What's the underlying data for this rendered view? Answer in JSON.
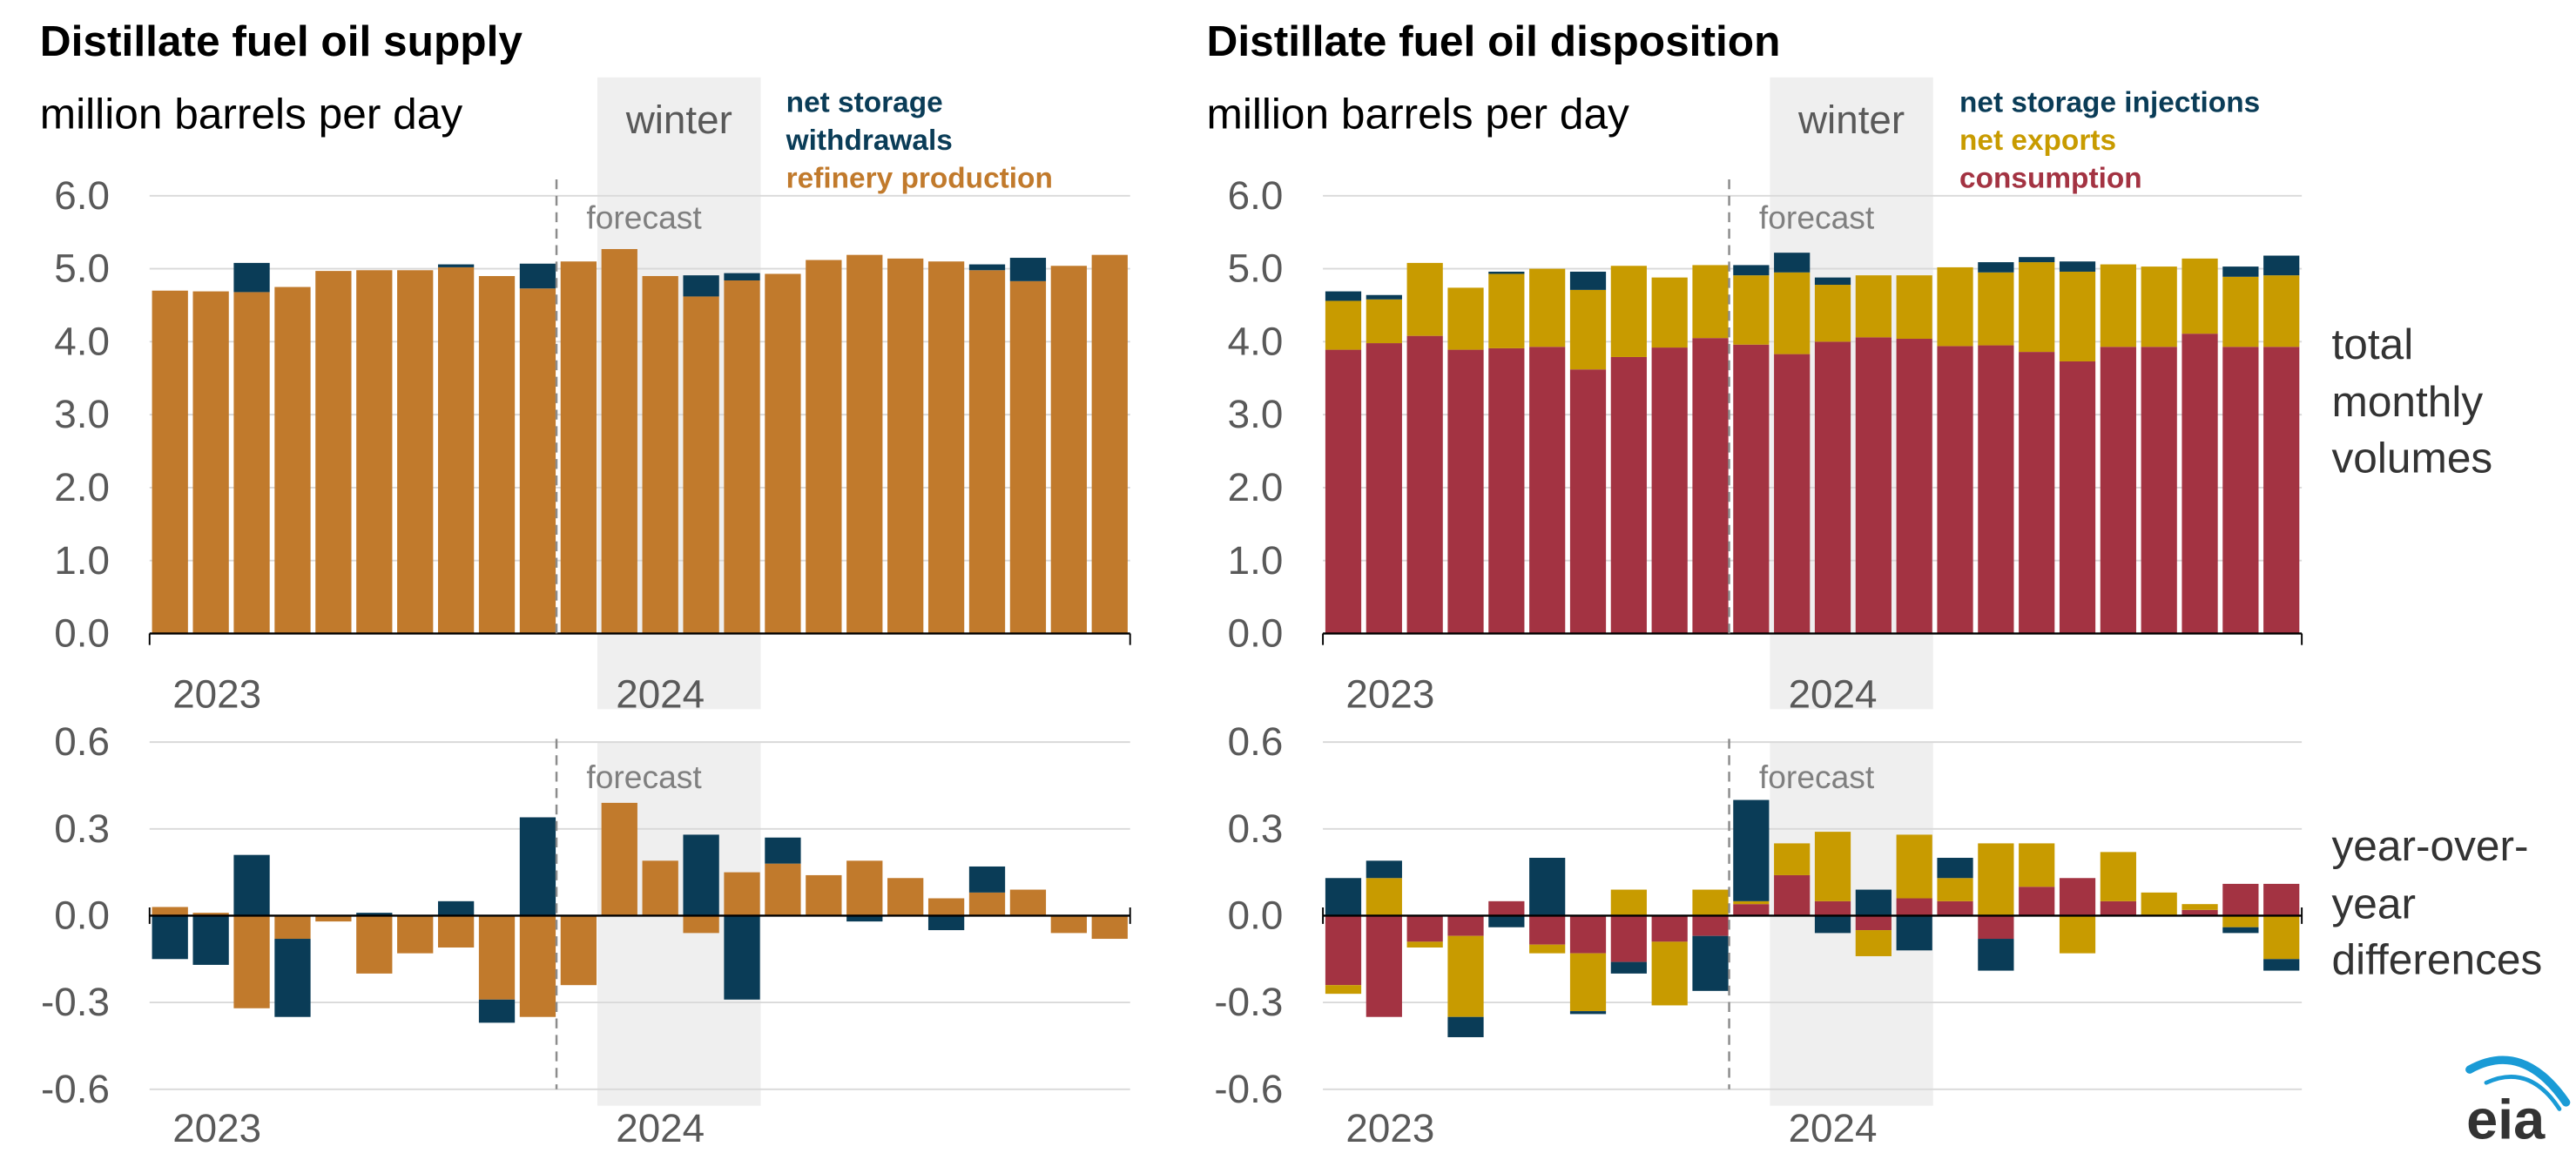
{
  "colors": {
    "storage": "#0a3c57",
    "refinery": "#c17a2c",
    "exports": "#c89b00",
    "consumption": "#a33342",
    "winter_shade": "#efefef",
    "grid": "#d9d9d9",
    "axis_text": "#595959",
    "forecast": "#8c8c8c",
    "eia_blue": "#1a9bd6"
  },
  "left": {
    "title": "Distillate fuel oil supply",
    "units": "million barrels per day",
    "winter_label": "winter",
    "forecast_label": "forecast",
    "legend": [
      "net storage",
      "withdrawals",
      "refinery production"
    ]
  },
  "right": {
    "title": "Distillate fuel oil disposition",
    "units": "million barrels per day",
    "winter_label": "winter",
    "forecast_label": "forecast",
    "legend": [
      "net storage injections",
      "net exports",
      "consumption"
    ]
  },
  "side_labels": {
    "top": [
      "total",
      "monthly",
      "volumes"
    ],
    "bottom": [
      "year-over-",
      "year",
      "differences"
    ]
  },
  "logo_text": "eia",
  "chart_data": [
    {
      "type": "bar",
      "stacked": true,
      "title": "Distillate fuel oil supply",
      "ylabel": "million barrels per day",
      "panel": "total monthly volumes",
      "ylim": [
        0,
        6
      ],
      "yticks": [
        "0.0",
        "1.0",
        "2.0",
        "3.0",
        "4.0",
        "5.0",
        "6.0"
      ],
      "year_labels": [
        "2023",
        "2024"
      ],
      "forecast_starts_index": 10,
      "winter_index_range": [
        11,
        15
      ],
      "series": [
        {
          "name": "refinery production",
          "color": "#c17a2c",
          "values": [
            4.7,
            4.69,
            4.68,
            4.75,
            4.97,
            4.98,
            4.98,
            5.02,
            4.9,
            4.73,
            5.1,
            5.27,
            4.9,
            4.62,
            4.84,
            4.93,
            5.12,
            5.19,
            5.14,
            5.1,
            4.98,
            4.83,
            5.04,
            5.19
          ]
        },
        {
          "name": "net storage withdrawals",
          "color": "#0a3c57",
          "values": [
            0,
            0,
            0.4,
            0,
            0,
            0,
            0,
            0.04,
            0,
            0.34,
            0,
            0,
            0,
            0.29,
            0.1,
            0,
            0,
            0,
            0,
            0,
            0.08,
            0.32,
            0,
            0
          ]
        }
      ]
    },
    {
      "type": "bar",
      "stacked": true,
      "title": "Distillate fuel oil disposition",
      "ylabel": "million barrels per day",
      "panel": "total monthly volumes",
      "ylim": [
        0,
        6
      ],
      "yticks": [
        "0.0",
        "1.0",
        "2.0",
        "3.0",
        "4.0",
        "5.0",
        "6.0"
      ],
      "year_labels": [
        "2023",
        "2024"
      ],
      "forecast_starts_index": 10,
      "winter_index_range": [
        11,
        15
      ],
      "series": [
        {
          "name": "consumption",
          "color": "#a33342",
          "values": [
            3.89,
            3.98,
            4.08,
            3.89,
            3.91,
            3.93,
            3.62,
            3.79,
            3.92,
            4.05,
            3.96,
            3.83,
            4.0,
            4.06,
            4.04,
            3.94,
            3.95,
            3.86,
            3.73,
            3.93,
            3.93,
            4.11,
            3.93,
            3.93
          ]
        },
        {
          "name": "net exports",
          "color": "#c89b00",
          "values": [
            0.67,
            0.6,
            1.0,
            0.85,
            1.02,
            1.07,
            1.09,
            1.25,
            0.96,
            1.0,
            0.95,
            1.12,
            0.78,
            0.85,
            0.87,
            1.08,
            1.0,
            1.23,
            1.23,
            1.13,
            1.1,
            1.03,
            0.96,
            0.98
          ]
        },
        {
          "name": "net storage injections",
          "color": "#0a3c57",
          "values": [
            0.13,
            0.06,
            0,
            0,
            0.03,
            0,
            0.25,
            0,
            0,
            0,
            0.14,
            0.27,
            0.1,
            0,
            0,
            0,
            0.14,
            0.07,
            0.14,
            0,
            0,
            0,
            0.14,
            0.27
          ]
        }
      ]
    },
    {
      "type": "bar",
      "stacked": true,
      "title": "Distillate fuel oil supply",
      "panel": "year-over-year differences",
      "ylim": [
        -0.6,
        0.6
      ],
      "yticks": [
        "-0.6",
        "-0.3",
        "0.0",
        "0.3",
        "0.6"
      ],
      "year_labels": [
        "2023",
        "2024"
      ],
      "forecast_starts_index": 10,
      "winter_index_range": [
        11,
        15
      ],
      "series": [
        {
          "name": "refinery production",
          "color": "#c17a2c",
          "values": [
            0.03,
            0.01,
            -0.32,
            -0.08,
            -0.02,
            -0.2,
            -0.13,
            -0.11,
            -0.29,
            -0.35,
            -0.24,
            0.39,
            0.19,
            -0.06,
            0.15,
            0.18,
            0.14,
            0.19,
            0.13,
            0.06,
            0.08,
            0.09,
            -0.06,
            -0.08
          ]
        },
        {
          "name": "net storage withdrawals",
          "color": "#0a3c57",
          "values": [
            -0.15,
            -0.17,
            0.21,
            -0.27,
            0,
            0.01,
            0,
            0.05,
            -0.08,
            0.34,
            0,
            0,
            0,
            0.28,
            -0.29,
            0.09,
            0,
            -0.02,
            0,
            -0.05,
            0.09,
            0,
            0,
            0
          ]
        }
      ]
    },
    {
      "type": "bar",
      "stacked": true,
      "title": "Distillate fuel oil disposition",
      "panel": "year-over-year differences",
      "ylim": [
        -0.6,
        0.6
      ],
      "yticks": [
        "-0.6",
        "-0.3",
        "0.0",
        "0.3",
        "0.6"
      ],
      "year_labels": [
        "2023",
        "2024"
      ],
      "forecast_starts_index": 10,
      "winter_index_range": [
        11,
        15
      ],
      "series": [
        {
          "name": "consumption",
          "color": "#a33342",
          "values": [
            -0.24,
            -0.35,
            -0.09,
            -0.07,
            0.05,
            -0.1,
            -0.13,
            -0.16,
            -0.09,
            -0.07,
            0.04,
            0.14,
            0.05,
            -0.05,
            0.06,
            0.05,
            -0.08,
            0.1,
            0.13,
            0.05,
            0,
            0.02,
            0.11,
            0.11
          ]
        },
        {
          "name": "net exports",
          "color": "#c89b00",
          "values": [
            -0.03,
            0.13,
            -0.02,
            -0.28,
            0,
            -0.03,
            -0.2,
            0.09,
            -0.22,
            0.09,
            0.01,
            0.11,
            0.24,
            -0.09,
            0.22,
            0.08,
            0.25,
            0.15,
            -0.13,
            0.17,
            0.08,
            0.02,
            -0.04,
            -0.15
          ]
        },
        {
          "name": "net storage injections",
          "color": "#0a3c57",
          "values": [
            0.13,
            0.06,
            0,
            -0.07,
            -0.04,
            0.2,
            -0.01,
            -0.04,
            0,
            -0.19,
            0.35,
            0,
            -0.06,
            0.09,
            -0.12,
            0.07,
            -0.11,
            0,
            0,
            0,
            0,
            0,
            -0.02,
            -0.04
          ]
        }
      ]
    }
  ]
}
